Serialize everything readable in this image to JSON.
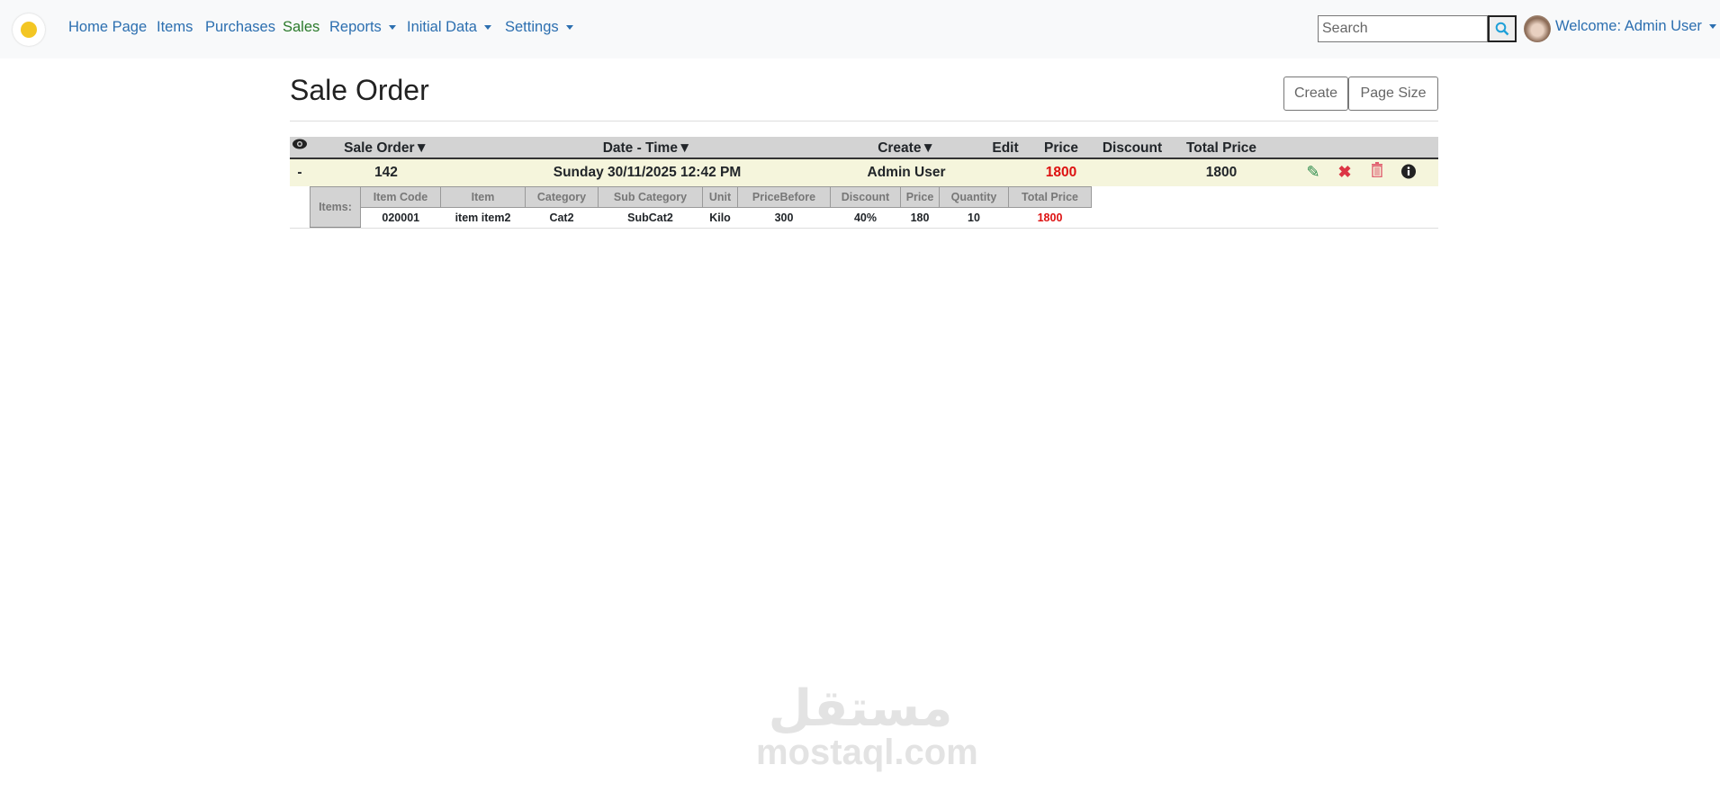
{
  "nav": {
    "items": [
      {
        "label": "Home Page"
      },
      {
        "label": "Items"
      },
      {
        "label": "Purchases"
      },
      {
        "label": "Sales",
        "active": true
      },
      {
        "label": "Reports",
        "dropdown": true
      },
      {
        "label": "Initial Data",
        "dropdown": true
      },
      {
        "label": "Settings",
        "dropdown": true
      }
    ],
    "search_placeholder": "Search",
    "welcome": "Welcome: Admin User"
  },
  "page": {
    "title": "Sale Order",
    "create_label": "Create",
    "page_size_label": "Page Size"
  },
  "table": {
    "headers": {
      "sale_order": "Sale Order▼",
      "date_time": "Date - Time▼",
      "create": "Create▼",
      "edit": "Edit",
      "price": "Price",
      "discount": "Discount",
      "total_price": "Total Price"
    },
    "row": {
      "toggle": "-",
      "sale_order": "142",
      "date_time": "Sunday 30/11/2025 12:42 PM",
      "create": "Admin User",
      "edit": "",
      "price": "1800",
      "discount": "",
      "total_price": "1800"
    },
    "items_label": "Items:",
    "item_headers": [
      "Item Code",
      "Item",
      "Category",
      "Sub Category",
      "Unit",
      "PriceBefore",
      "Discount",
      "Price",
      "Quantity",
      "Total Price"
    ],
    "items": [
      [
        "020001",
        "item item2",
        "Cat2",
        "SubCat2",
        "Kilo",
        "300",
        "40%",
        "180",
        "10",
        "1800"
      ]
    ]
  },
  "colors": {
    "link": "#2c6fb0",
    "active": "#2a7a2a",
    "price_red": "#dd1111",
    "row_bg": "#f5f5dc",
    "header_bg": "#d3d3d3"
  },
  "watermark": {
    "arabic": "مستقل",
    "latin": "mostaql.com"
  }
}
